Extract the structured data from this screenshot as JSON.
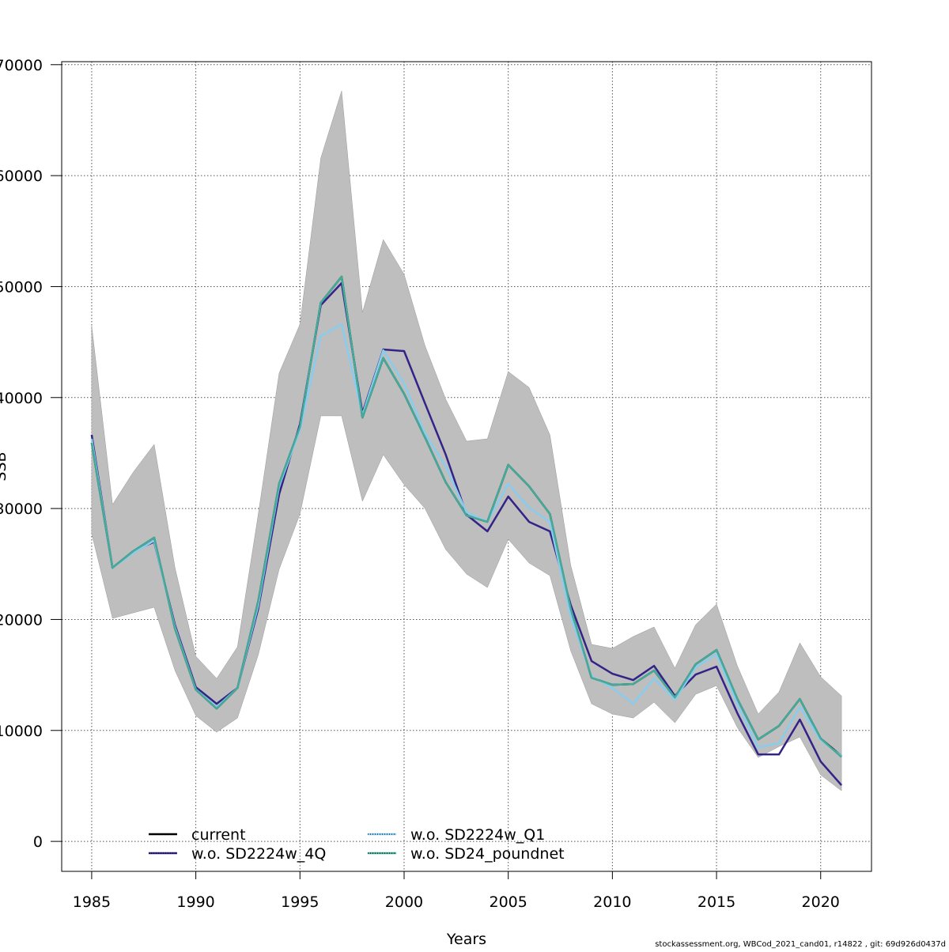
{
  "chart_data": {
    "type": "line",
    "xlabel": "Years",
    "ylabel": "SSB",
    "xlim": [
      1983.56,
      2022.44
    ],
    "ylim": [
      -2700,
      70270
    ],
    "grid": true,
    "legend_placement": "bottom",
    "x_ticks": [
      1985,
      1990,
      1995,
      2000,
      2005,
      2010,
      2015,
      2020
    ],
    "x_tick_labels": [
      "1985",
      "1990",
      "1995",
      "2000",
      "2005",
      "2010",
      "2015",
      "2020"
    ],
    "y_ticks": [
      0,
      10000,
      20000,
      30000,
      40000,
      50000,
      60000,
      70000
    ],
    "y_tick_labels": [
      "0",
      "10000",
      "20000",
      "30000",
      "40000",
      "50000",
      "60000",
      "70000"
    ],
    "x": [
      1985,
      1986,
      1987,
      1988,
      1989,
      1990,
      1991,
      1992,
      1993,
      1994,
      1995,
      1996,
      1997,
      1998,
      1999,
      2000,
      2001,
      2002,
      2003,
      2004,
      2005,
      2006,
      2007,
      2008,
      2009,
      2010,
      2011,
      2012,
      2013,
      2014,
      2015,
      2016,
      2017,
      2018,
      2019,
      2020,
      2021
    ],
    "band": {
      "color": "#bebebe",
      "upper": [
        46470,
        30360,
        33290,
        35780,
        24660,
        16680,
        14680,
        17530,
        29510,
        42200,
        46610,
        61580,
        67640,
        47680,
        54240,
        51100,
        44690,
        39840,
        36070,
        36280,
        42340,
        40910,
        36640,
        24880,
        17750,
        17390,
        18460,
        19320,
        15610,
        19530,
        21380,
        15820,
        11480,
        13470,
        17890,
        14830,
        13110
      ],
      "lower": [
        27730,
        20100,
        20600,
        21100,
        15400,
        11330,
        9840,
        11120,
        16820,
        24520,
        29510,
        38350,
        38350,
        30650,
        34850,
        32150,
        30010,
        26300,
        24090,
        22880,
        27230,
        25090,
        23950,
        17180,
        12400,
        11480,
        11120,
        12540,
        10690,
        13260,
        14040,
        10260,
        7560,
        8550,
        9410,
        5990,
        4560
      ]
    },
    "series": [
      {
        "name": "current",
        "color": "#000000",
        "values": [
          35920,
          24660,
          26160,
          27370,
          19170,
          13680,
          11970,
          13830,
          21670,
          32220,
          37350,
          48540,
          50890,
          38200,
          43550,
          40340,
          36420,
          32360,
          29370,
          28800,
          33930,
          32000,
          29510,
          20950,
          14750,
          14110,
          14180,
          15400,
          12970,
          15970,
          17250,
          12830,
          9190,
          10410,
          12830,
          9270,
          7700
        ]
      },
      {
        "name": "w.o. SD2224w_4Q",
        "color": "#332288",
        "values": [
          36640,
          24660,
          26160,
          27000,
          19500,
          13900,
          12400,
          13830,
          21000,
          31290,
          37600,
          48330,
          50320,
          38600,
          44330,
          44190,
          39490,
          34850,
          29440,
          27940,
          31080,
          28800,
          27940,
          21300,
          16250,
          15110,
          14540,
          15820,
          13110,
          15040,
          15750,
          11550,
          7840,
          7840,
          10980,
          7200,
          5060
        ]
      },
      {
        "name": "w.o. SD2224w_Q1",
        "color": "#88ccee",
        "values": [
          36280,
          24660,
          26000,
          27100,
          19300,
          13700,
          12100,
          13830,
          21300,
          32000,
          37100,
          45540,
          46610,
          38420,
          44260,
          41270,
          36780,
          33790,
          29650,
          28800,
          32220,
          30080,
          28800,
          20240,
          14890,
          13830,
          12400,
          14680,
          12760,
          15680,
          16890,
          12400,
          8480,
          8840,
          12120,
          9130,
          7700
        ]
      },
      {
        "name": "w.o. SD24_poundnet",
        "color": "#44aa99",
        "values": [
          35920,
          24660,
          26160,
          27370,
          19170,
          13680,
          11970,
          13830,
          21670,
          32220,
          37350,
          48540,
          50890,
          38200,
          43550,
          40340,
          36420,
          32360,
          29370,
          28800,
          33930,
          32000,
          29510,
          20950,
          14750,
          14110,
          14180,
          15400,
          12970,
          15970,
          17250,
          12830,
          9190,
          10410,
          12830,
          9270,
          7600
        ]
      }
    ]
  },
  "footer": {
    "credit": "stockassessment.org, WBCod_2021_cand01, r14822 , git: 69d926d0437d"
  }
}
